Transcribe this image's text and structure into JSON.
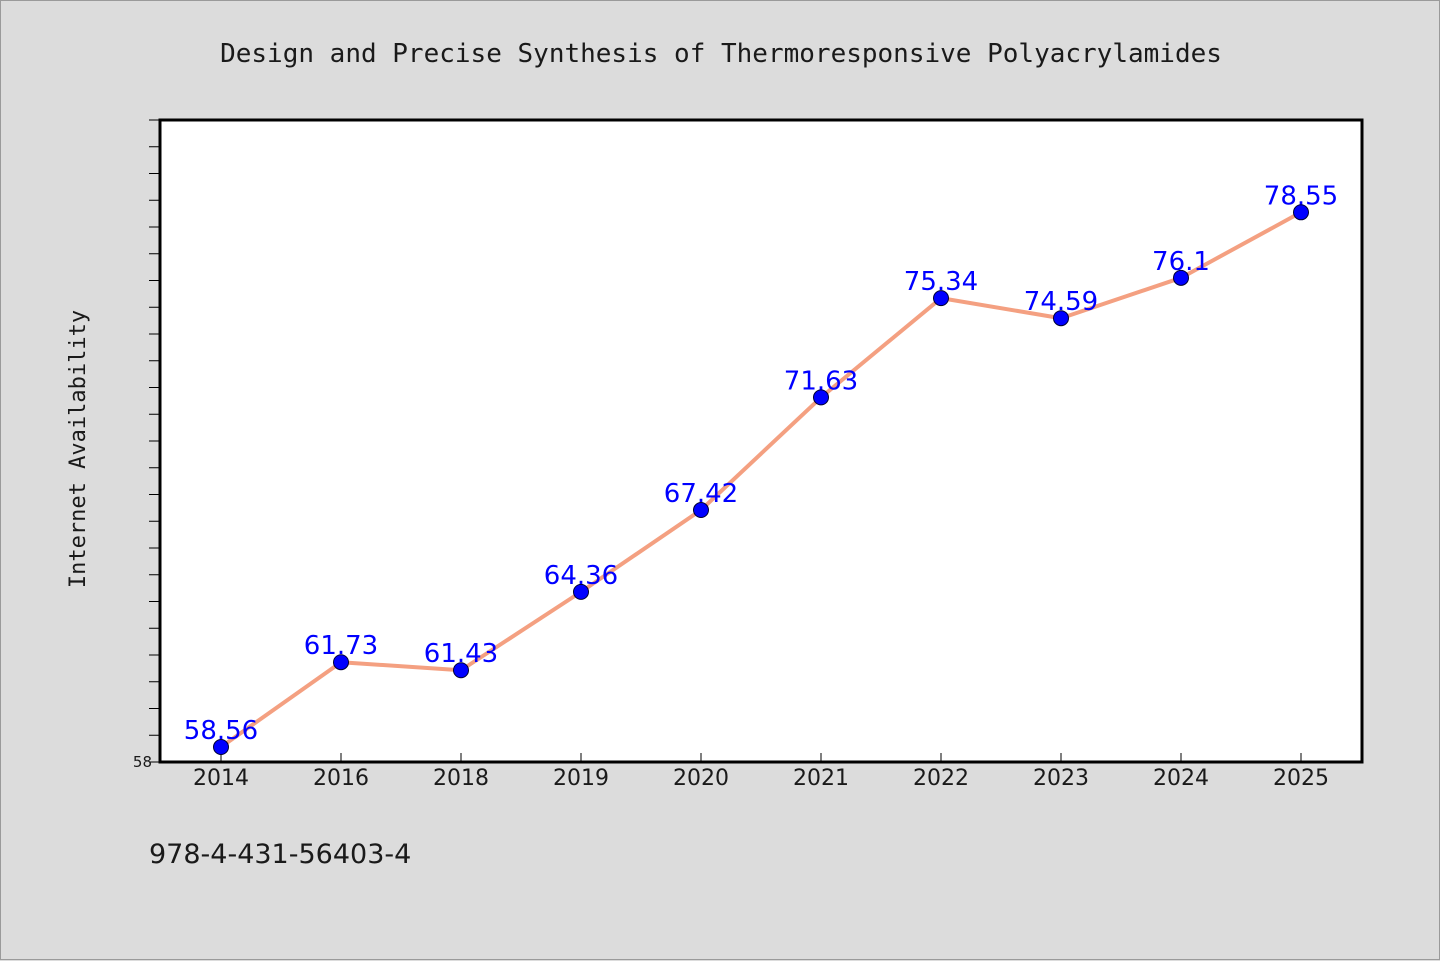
{
  "chart_data": {
    "type": "line",
    "title": "Design and Precise Synthesis of Thermoresponsive Polyacrylamides",
    "xlabel": "",
    "ylabel": "Internet Availability",
    "categories": [
      "2014",
      "2016",
      "2018",
      "2019",
      "2020",
      "2021",
      "2022",
      "2023",
      "2024",
      "2025"
    ],
    "series": [
      {
        "values": [
          58.56,
          61.73,
          61.43,
          64.36,
          67.42,
          71.63,
          75.34,
          74.59,
          76.1,
          78.55
        ],
        "labels": [
          "58.56",
          "61.73",
          "61.43",
          "64.36",
          "67.42",
          "71.63",
          "75.34",
          "74.59",
          "76.1",
          "78.55"
        ],
        "line_color": "#f4a081",
        "marker_color": "#0000ff"
      }
    ],
    "ylim": [
      58,
      82
    ],
    "yticks": [
      "58"
    ],
    "grid": false,
    "legend": "none"
  },
  "footer": {
    "isbn": "978-4-431-56403-4"
  }
}
